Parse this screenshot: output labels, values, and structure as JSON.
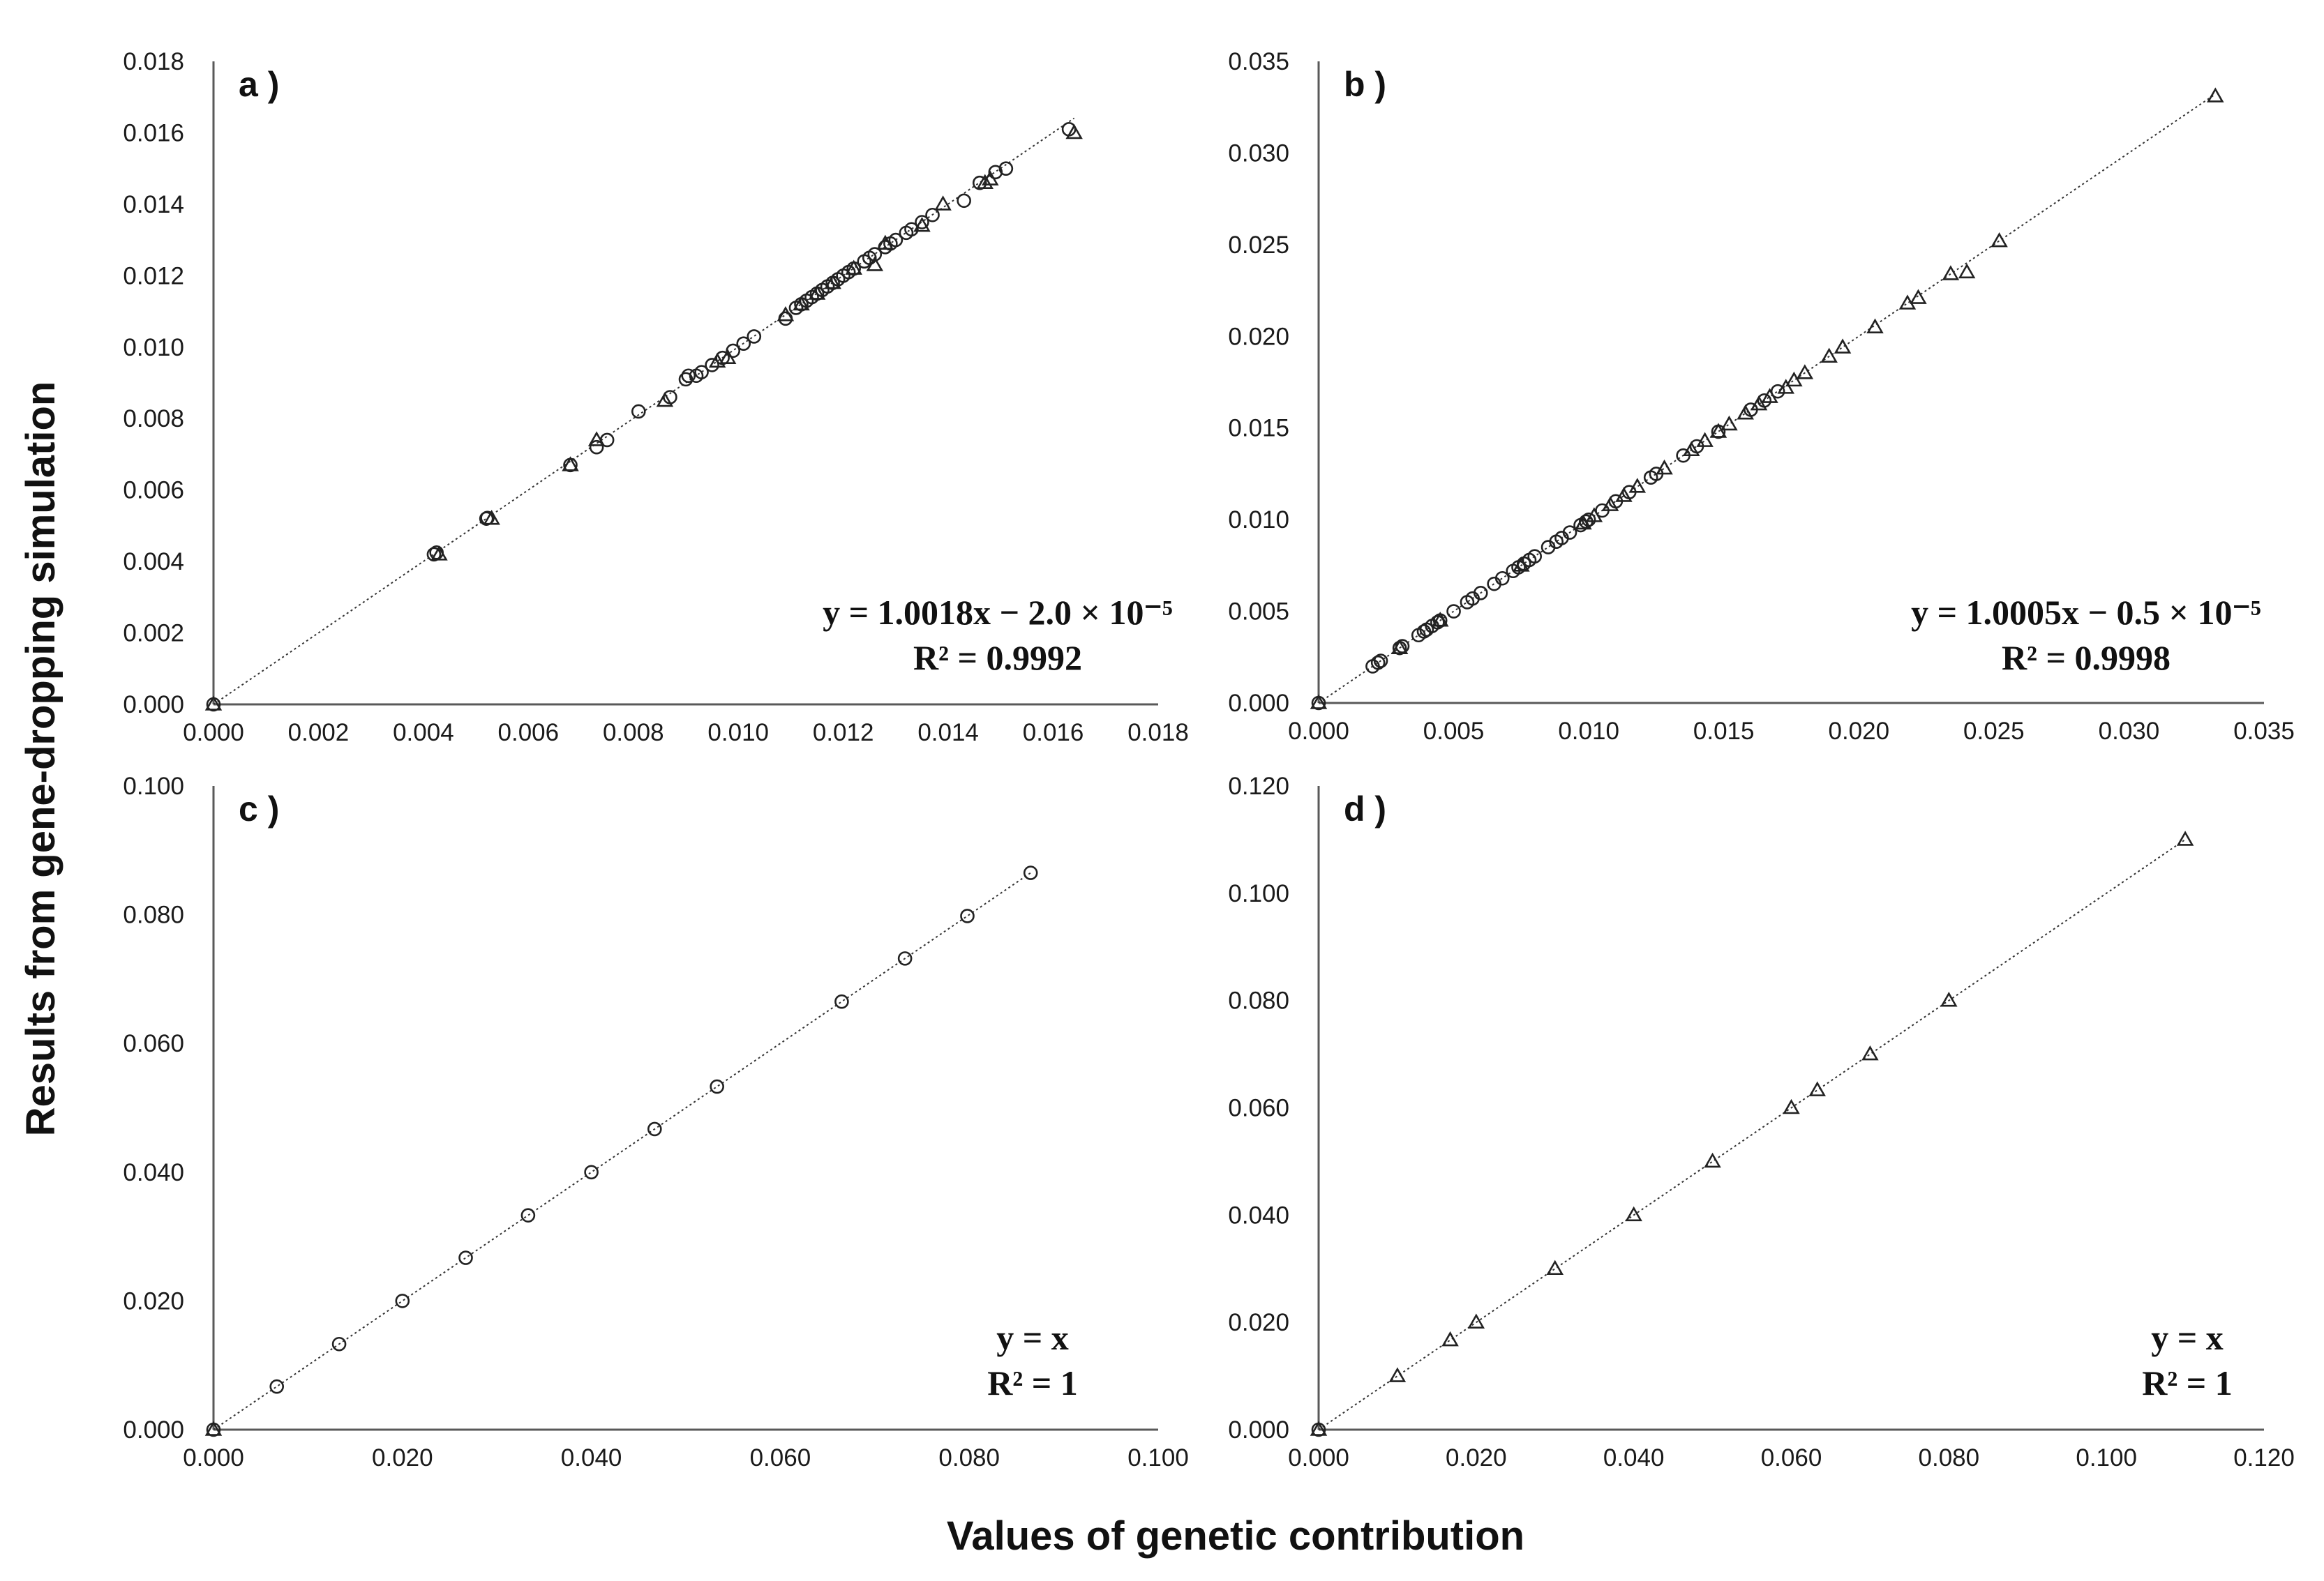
{
  "figure": {
    "xlabel": "Values of genetic contribution",
    "ylabel": "Results from gene-dropping simulation"
  },
  "chart_data": [
    {
      "id": "a",
      "type": "scatter",
      "panel_label": "a )",
      "xlim": [
        0,
        0.018
      ],
      "ylim": [
        0,
        0.018
      ],
      "xticks": [
        "0.000",
        "0.002",
        "0.004",
        "0.006",
        "0.008",
        "0.010",
        "0.012",
        "0.014",
        "0.016",
        "0.018"
      ],
      "yticks": [
        "0.000",
        "0.002",
        "0.004",
        "0.006",
        "0.008",
        "0.010",
        "0.012",
        "0.014",
        "0.016",
        "0.018"
      ],
      "equation": "y = 1.0018x − 2.0 × 10⁻⁵",
      "r2": "R² = 0.9992",
      "fit": {
        "slope": 1.0018,
        "intercept": -2e-05
      },
      "series": [
        {
          "name": "circle",
          "marker": "circle",
          "x": [
            0,
            0.0042,
            0.00425,
            0.0052,
            0.00522,
            0.0068,
            0.0073,
            0.0075,
            0.0081,
            0.0087,
            0.009,
            0.00905,
            0.0092,
            0.0093,
            0.0095,
            0.0097,
            0.0099,
            0.0101,
            0.0103,
            0.0109,
            0.0111,
            0.0112,
            0.0113,
            0.0114,
            0.0115,
            0.0116,
            0.0117,
            0.0118,
            0.0119,
            0.012,
            0.0121,
            0.0122,
            0.0124,
            0.0125,
            0.0126,
            0.0128,
            0.0129,
            0.013,
            0.0132,
            0.0133,
            0.0135,
            0.0137,
            0.0143,
            0.0146,
            0.0149,
            0.0151,
            0.0163
          ],
          "y": [
            0,
            0.0042,
            0.00425,
            0.0052,
            0.00522,
            0.0067,
            0.0072,
            0.0074,
            0.0082,
            0.0086,
            0.0091,
            0.0092,
            0.0092,
            0.0093,
            0.0095,
            0.0097,
            0.0099,
            0.0101,
            0.0103,
            0.0108,
            0.0111,
            0.0112,
            0.0113,
            0.0114,
            0.0115,
            0.0116,
            0.0117,
            0.0118,
            0.0119,
            0.012,
            0.0121,
            0.0122,
            0.0124,
            0.0125,
            0.0126,
            0.0128,
            0.0129,
            0.013,
            0.0132,
            0.0133,
            0.0135,
            0.0137,
            0.0141,
            0.0146,
            0.0149,
            0.015,
            0.0161
          ]
        },
        {
          "name": "triangle",
          "marker": "triangle",
          "x": [
            0,
            0.0043,
            0.0053,
            0.0068,
            0.0073,
            0.0086,
            0.0096,
            0.0098,
            0.0109,
            0.0112,
            0.0115,
            0.0118,
            0.0122,
            0.0126,
            0.0128,
            0.0135,
            0.0139,
            0.0147,
            0.0148,
            0.0164
          ],
          "y": [
            0,
            0.0042,
            0.0052,
            0.0067,
            0.0074,
            0.0085,
            0.0096,
            0.0097,
            0.0109,
            0.0112,
            0.0115,
            0.0118,
            0.0122,
            0.0123,
            0.0129,
            0.0134,
            0.014,
            0.0146,
            0.0147,
            0.016
          ]
        }
      ]
    },
    {
      "id": "b",
      "type": "scatter",
      "panel_label": "b )",
      "xlim": [
        0,
        0.035
      ],
      "ylim": [
        0,
        0.035
      ],
      "xticks": [
        "0.000",
        "0.005",
        "0.010",
        "0.015",
        "0.020",
        "0.025",
        "0.030",
        "0.035"
      ],
      "yticks": [
        "0.000",
        "0.005",
        "0.010",
        "0.015",
        "0.020",
        "0.025",
        "0.030",
        "0.035"
      ],
      "equation": "y = 1.0005x − 0.5 × 10⁻⁵",
      "r2": "R² = 0.9998",
      "fit": {
        "slope": 1.0005,
        "intercept": -5e-06
      },
      "series": [
        {
          "name": "circle",
          "marker": "circle",
          "x": [
            0,
            0.002,
            0.0022,
            0.0023,
            0.003,
            0.0031,
            0.0037,
            0.0039,
            0.004,
            0.0042,
            0.0044,
            0.0045,
            0.005,
            0.0055,
            0.0057,
            0.006,
            0.0065,
            0.0068,
            0.0072,
            0.0074,
            0.0076,
            0.0078,
            0.008,
            0.0085,
            0.0088,
            0.009,
            0.0093,
            0.0097,
            0.0099,
            0.01,
            0.0105,
            0.011,
            0.0115,
            0.0123,
            0.0125,
            0.0135,
            0.014,
            0.0148,
            0.016,
            0.0165,
            0.017
          ],
          "y": [
            0,
            0.002,
            0.0022,
            0.0023,
            0.003,
            0.0031,
            0.0037,
            0.0039,
            0.004,
            0.0042,
            0.0044,
            0.0045,
            0.005,
            0.0055,
            0.0057,
            0.006,
            0.0065,
            0.0068,
            0.0072,
            0.0074,
            0.0076,
            0.0078,
            0.008,
            0.0085,
            0.0088,
            0.009,
            0.0093,
            0.0097,
            0.0099,
            0.01,
            0.0105,
            0.011,
            0.0115,
            0.0123,
            0.0125,
            0.0135,
            0.014,
            0.0148,
            0.016,
            0.0165,
            0.017
          ]
        },
        {
          "name": "triangle",
          "marker": "triangle",
          "x": [
            0,
            0.003,
            0.0045,
            0.0075,
            0.0098,
            0.0102,
            0.0108,
            0.0113,
            0.0118,
            0.0128,
            0.0138,
            0.0143,
            0.0148,
            0.0152,
            0.0158,
            0.0163,
            0.0167,
            0.0173,
            0.0176,
            0.018,
            0.0189,
            0.0194,
            0.0206,
            0.0218,
            0.0222,
            0.0234,
            0.024,
            0.0252,
            0.0332
          ],
          "y": [
            0,
            0.003,
            0.0045,
            0.0075,
            0.0098,
            0.0102,
            0.0108,
            0.0113,
            0.0118,
            0.0128,
            0.0138,
            0.0143,
            0.0148,
            0.0152,
            0.0158,
            0.0163,
            0.0167,
            0.0172,
            0.0176,
            0.018,
            0.0189,
            0.0194,
            0.0205,
            0.0218,
            0.0221,
            0.0234,
            0.0235,
            0.0252,
            0.0331
          ]
        }
      ]
    },
    {
      "id": "c",
      "type": "scatter",
      "panel_label": "c )",
      "xlim": [
        0,
        0.1
      ],
      "ylim": [
        0,
        0.1
      ],
      "xticks": [
        "0.000",
        "0.020",
        "0.040",
        "0.060",
        "0.080",
        "0.100"
      ],
      "yticks": [
        "0.000",
        "0.020",
        "0.040",
        "0.060",
        "0.080",
        "0.100"
      ],
      "equation": "y = x",
      "r2": "R² = 1",
      "fit": {
        "slope": 1,
        "intercept": 0
      },
      "series": [
        {
          "name": "circle",
          "marker": "circle",
          "x": [
            0,
            0.0067,
            0.0133,
            0.02,
            0.0267,
            0.0333,
            0.04,
            0.0467,
            0.0533,
            0.0665,
            0.0732,
            0.0798,
            0.0865
          ],
          "y": [
            0,
            0.0067,
            0.0133,
            0.02,
            0.0267,
            0.0333,
            0.04,
            0.0467,
            0.0533,
            0.0665,
            0.0732,
            0.0798,
            0.0865
          ]
        },
        {
          "name": "triangle",
          "marker": "triangle",
          "x": [
            0
          ],
          "y": [
            0
          ]
        }
      ]
    },
    {
      "id": "d",
      "type": "scatter",
      "panel_label": "d )",
      "xlim": [
        0,
        0.12
      ],
      "ylim": [
        0,
        0.12
      ],
      "xticks": [
        "0.000",
        "0.020",
        "0.040",
        "0.060",
        "0.080",
        "0.100",
        "0.120"
      ],
      "yticks": [
        "0.000",
        "0.020",
        "0.040",
        "0.060",
        "0.080",
        "0.100",
        "0.120"
      ],
      "equation": "y = x",
      "r2": "R² = 1",
      "fit": {
        "slope": 1,
        "intercept": 0
      },
      "series": [
        {
          "name": "circle",
          "marker": "circle",
          "x": [
            0
          ],
          "y": [
            0
          ]
        },
        {
          "name": "triangle",
          "marker": "triangle",
          "x": [
            0,
            0.01,
            0.0167,
            0.02,
            0.03,
            0.04,
            0.05,
            0.06,
            0.0633,
            0.07,
            0.08,
            0.11
          ],
          "y": [
            0,
            0.01,
            0.0167,
            0.02,
            0.03,
            0.04,
            0.05,
            0.06,
            0.0633,
            0.07,
            0.08,
            0.11
          ]
        }
      ]
    }
  ]
}
